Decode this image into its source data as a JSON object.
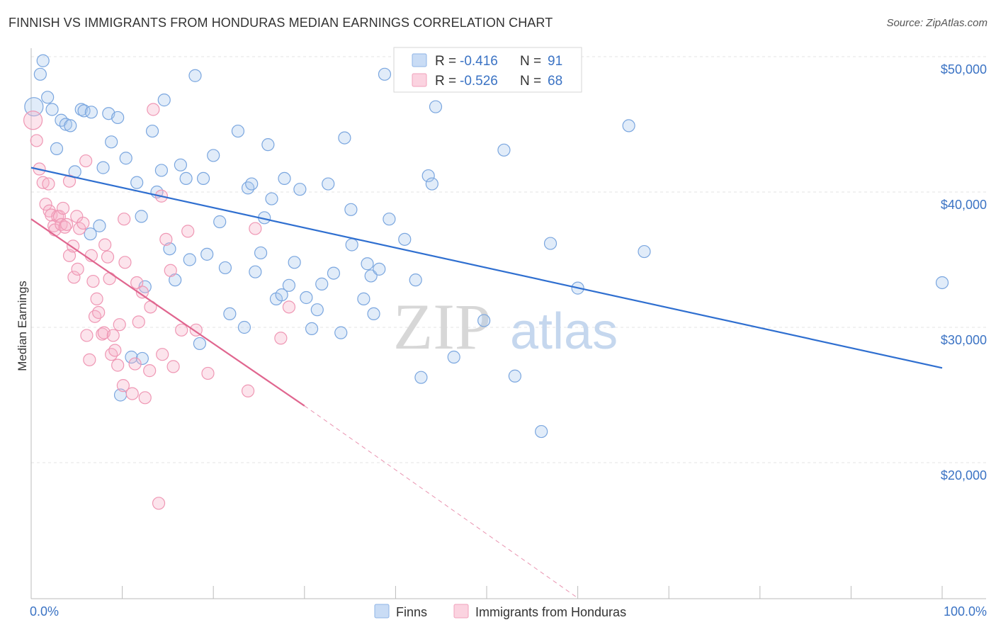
{
  "title": "FINNISH VS IMMIGRANTS FROM HONDURAS MEDIAN EARNINGS CORRELATION CHART",
  "source": "Source: ZipAtlas.com",
  "watermark": {
    "zip": "ZIP",
    "atlas": "atlas"
  },
  "legend_box": {
    "rows": [
      {
        "r_label": "R = ",
        "r_value": "-0.416",
        "n_label": "N = ",
        "n_value": "91",
        "color": "#a9c8ef"
      },
      {
        "r_label": "R = ",
        "r_value": "-0.526",
        "n_label": "N = ",
        "n_value": "68",
        "color": "#f6b3c8"
      }
    ]
  },
  "bottom_legend": [
    {
      "label": "Finns",
      "color": "#a9c8ef"
    },
    {
      "label": "Immigrants from Honduras",
      "color": "#f6b3c8"
    }
  ],
  "chart_data": {
    "type": "scatter",
    "title": "FINNISH VS IMMIGRANTS FROM HONDURAS MEDIAN EARNINGS CORRELATION CHART",
    "xlabel": "",
    "ylabel": "Median Earnings",
    "xlim": [
      0,
      100
    ],
    "ylim": [
      10000,
      52500
    ],
    "x_tick_labels": [
      "0.0%",
      "100.0%"
    ],
    "y_ticks": [
      20000,
      30000,
      40000,
      50000
    ],
    "y_tick_labels": [
      "$20,000",
      "$30,000",
      "$40,000",
      "$50,000"
    ],
    "grid": true,
    "legend_placement": "top-center",
    "series": [
      {
        "name": "Finns",
        "color": "#6fa0e0",
        "trend": {
          "x": [
            0,
            100
          ],
          "y": [
            41800,
            27000
          ],
          "color": "#2f6fd0"
        },
        "points": [
          [
            0.3,
            46300
          ],
          [
            1.0,
            48700
          ],
          [
            1.3,
            49700
          ],
          [
            1.8,
            47000
          ],
          [
            2.3,
            46100
          ],
          [
            2.8,
            43200
          ],
          [
            3.3,
            45300
          ],
          [
            3.8,
            45000
          ],
          [
            4.3,
            44900
          ],
          [
            4.8,
            41500
          ],
          [
            5.5,
            46100
          ],
          [
            5.8,
            46000
          ],
          [
            6.6,
            45900
          ],
          [
            6.5,
            36900
          ],
          [
            7.5,
            37500
          ],
          [
            7.9,
            41800
          ],
          [
            8.5,
            45800
          ],
          [
            8.8,
            43700
          ],
          [
            9.5,
            45500
          ],
          [
            10.4,
            42500
          ],
          [
            11.6,
            40700
          ],
          [
            12.1,
            38200
          ],
          [
            12.5,
            33000
          ],
          [
            13.3,
            44500
          ],
          [
            13.8,
            40000
          ],
          [
            14.3,
            41600
          ],
          [
            14.6,
            46800
          ],
          [
            15.2,
            35800
          ],
          [
            15.8,
            33500
          ],
          [
            16.4,
            42000
          ],
          [
            17.0,
            41000
          ],
          [
            17.4,
            35000
          ],
          [
            18.0,
            48600
          ],
          [
            18.5,
            28800
          ],
          [
            18.9,
            41000
          ],
          [
            19.3,
            35400
          ],
          [
            20.0,
            42700
          ],
          [
            20.7,
            37800
          ],
          [
            21.3,
            34400
          ],
          [
            21.8,
            31000
          ],
          [
            22.7,
            44500
          ],
          [
            23.4,
            30000
          ],
          [
            23.8,
            40300
          ],
          [
            24.2,
            40600
          ],
          [
            24.6,
            34100
          ],
          [
            25.2,
            35500
          ],
          [
            25.6,
            38100
          ],
          [
            26.0,
            43500
          ],
          [
            26.4,
            39500
          ],
          [
            26.9,
            32100
          ],
          [
            27.5,
            32400
          ],
          [
            27.8,
            41000
          ],
          [
            28.3,
            33100
          ],
          [
            28.9,
            34800
          ],
          [
            29.5,
            40200
          ],
          [
            30.2,
            32200
          ],
          [
            30.8,
            29900
          ],
          [
            31.4,
            31300
          ],
          [
            31.9,
            33200
          ],
          [
            32.6,
            40600
          ],
          [
            33.2,
            34000
          ],
          [
            34.0,
            29600
          ],
          [
            34.4,
            44000
          ],
          [
            35.1,
            38700
          ],
          [
            35.2,
            36100
          ],
          [
            36.5,
            32100
          ],
          [
            36.9,
            34700
          ],
          [
            37.3,
            33800
          ],
          [
            37.6,
            31000
          ],
          [
            38.2,
            34300
          ],
          [
            38.8,
            48700
          ],
          [
            39.3,
            38000
          ],
          [
            41.0,
            36500
          ],
          [
            42.2,
            33500
          ],
          [
            42.8,
            26300
          ],
          [
            43.6,
            41200
          ],
          [
            44.0,
            40600
          ],
          [
            44.4,
            46300
          ],
          [
            46.4,
            27800
          ],
          [
            49.7,
            30500
          ],
          [
            51.9,
            43100
          ],
          [
            53.1,
            26400
          ],
          [
            56.0,
            22300
          ],
          [
            57.0,
            36200
          ],
          [
            60.0,
            32900
          ],
          [
            65.6,
            44900
          ],
          [
            67.3,
            35600
          ],
          [
            100.0,
            33300
          ],
          [
            11.0,
            27800
          ],
          [
            12.2,
            27700
          ],
          [
            9.8,
            25000
          ]
        ]
      },
      {
        "name": "Immigrants from Honduras",
        "color": "#f08fae",
        "trend": {
          "x": [
            0,
            30
          ],
          "y": [
            38000,
            24200
          ],
          "color": "#e0668f"
        },
        "trend_dashed": {
          "x": [
            30,
            60
          ],
          "y": [
            24200,
            10000
          ]
        },
        "points": [
          [
            0.2,
            45300
          ],
          [
            0.6,
            43800
          ],
          [
            0.9,
            41700
          ],
          [
            1.3,
            40700
          ],
          [
            1.6,
            39100
          ],
          [
            1.9,
            40600
          ],
          [
            2.0,
            38600
          ],
          [
            2.2,
            38300
          ],
          [
            2.5,
            37500
          ],
          [
            2.6,
            37200
          ],
          [
            2.9,
            38200
          ],
          [
            3.1,
            38200
          ],
          [
            3.3,
            37600
          ],
          [
            3.5,
            38800
          ],
          [
            3.7,
            37400
          ],
          [
            3.9,
            37600
          ],
          [
            4.2,
            40800
          ],
          [
            4.2,
            35300
          ],
          [
            4.6,
            36000
          ],
          [
            4.7,
            33700
          ],
          [
            5.0,
            38200
          ],
          [
            5.1,
            34300
          ],
          [
            5.3,
            37300
          ],
          [
            5.7,
            37700
          ],
          [
            6.0,
            42300
          ],
          [
            6.1,
            29400
          ],
          [
            6.4,
            27600
          ],
          [
            6.6,
            35300
          ],
          [
            6.8,
            33400
          ],
          [
            7.0,
            30800
          ],
          [
            7.2,
            32100
          ],
          [
            7.4,
            31100
          ],
          [
            7.8,
            29500
          ],
          [
            8.0,
            29600
          ],
          [
            8.1,
            36100
          ],
          [
            8.4,
            35200
          ],
          [
            8.6,
            33600
          ],
          [
            8.8,
            28000
          ],
          [
            9.0,
            29400
          ],
          [
            9.2,
            28300
          ],
          [
            9.5,
            27200
          ],
          [
            9.7,
            30200
          ],
          [
            10.1,
            25700
          ],
          [
            10.3,
            34800
          ],
          [
            11.1,
            25100
          ],
          [
            11.4,
            27300
          ],
          [
            11.6,
            33300
          ],
          [
            11.8,
            30400
          ],
          [
            12.2,
            32600
          ],
          [
            12.5,
            24800
          ],
          [
            13.0,
            26800
          ],
          [
            13.1,
            31500
          ],
          [
            14.3,
            39700
          ],
          [
            14.4,
            28000
          ],
          [
            14.8,
            36500
          ],
          [
            15.3,
            34200
          ],
          [
            15.6,
            27100
          ],
          [
            16.5,
            29800
          ],
          [
            17.2,
            37100
          ],
          [
            18.1,
            29800
          ],
          [
            19.4,
            26600
          ],
          [
            23.8,
            25300
          ],
          [
            24.6,
            37300
          ],
          [
            27.4,
            29200
          ],
          [
            28.3,
            31500
          ],
          [
            14.0,
            17000
          ],
          [
            13.4,
            46100
          ],
          [
            10.2,
            38000
          ]
        ]
      }
    ]
  }
}
